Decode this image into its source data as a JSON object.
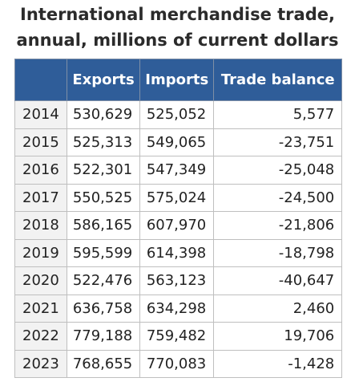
{
  "title": {
    "line1": "International merchandise trade,",
    "line2": "annual, millions of current dollars"
  },
  "table": {
    "headers": [
      "",
      "Exports",
      "Imports",
      "Trade balance"
    ],
    "rows": [
      {
        "year": "2014",
        "exports": "530,629",
        "imports": "525,052",
        "balance": "5,577"
      },
      {
        "year": "2015",
        "exports": "525,313",
        "imports": "549,065",
        "balance": "-23,751"
      },
      {
        "year": "2016",
        "exports": "522,301",
        "imports": "547,349",
        "balance": "-25,048"
      },
      {
        "year": "2017",
        "exports": "550,525",
        "imports": "575,024",
        "balance": "-24,500"
      },
      {
        "year": "2018",
        "exports": "586,165",
        "imports": "607,970",
        "balance": "-21,806"
      },
      {
        "year": "2019",
        "exports": "595,599",
        "imports": "614,398",
        "balance": "-18,798"
      },
      {
        "year": "2020",
        "exports": "522,476",
        "imports": "563,123",
        "balance": "-40,647"
      },
      {
        "year": "2021",
        "exports": "636,758",
        "imports": "634,298",
        "balance": "2,460"
      },
      {
        "year": "2022",
        "exports": "779,188",
        "imports": "759,482",
        "balance": "19,706"
      },
      {
        "year": "2023",
        "exports": "768,655",
        "imports": "770,083",
        "balance": "-1,428"
      }
    ]
  },
  "colors": {
    "header_bg": "#2f5d99",
    "header_text": "#ffffff",
    "year_cell_bg": "#f2f2f2",
    "border": "#bfbfbf"
  }
}
